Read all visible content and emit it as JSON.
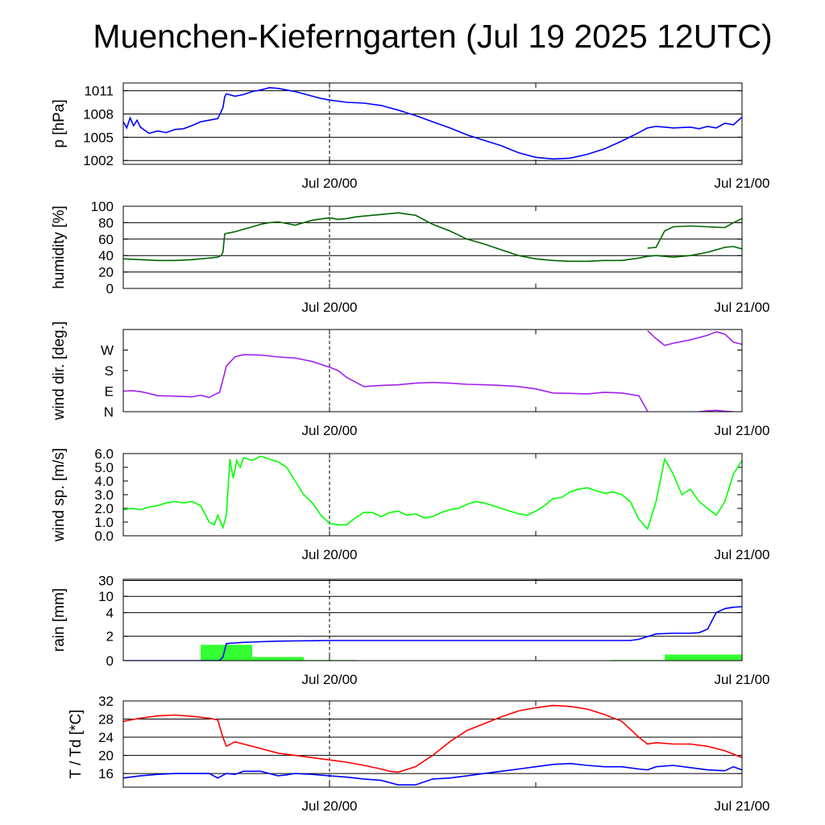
{
  "title": "Muenchen-Kieferngarten (Jul 19 2025 12UTC)",
  "chart_data": [
    {
      "type": "line",
      "ylabel": "p [hPa]",
      "ylim": [
        1001.5,
        1012
      ],
      "yticks": [
        1002,
        1005,
        1008,
        1011
      ],
      "yticklabels": [
        "1002",
        "1005",
        "1008",
        "1011"
      ],
      "xticklabels": [
        "Jul 20/00",
        "Jul 21/00"
      ],
      "xlim": [
        0,
        36
      ],
      "grid": true,
      "series": [
        {
          "color": "#0000ff",
          "x": [
            0,
            0.2,
            0.4,
            0.6,
            0.8,
            1,
            1.5,
            2,
            2.5,
            3,
            3.5,
            4,
            4.5,
            5,
            5.5,
            5.8,
            5.9,
            6,
            6.5,
            7,
            7.5,
            8,
            8.5,
            9,
            9.5,
            10,
            10.5,
            11,
            11.5,
            12,
            13,
            14,
            15,
            16,
            17,
            18,
            19,
            20,
            21,
            22,
            23,
            24,
            25,
            26,
            27,
            28,
            29,
            30,
            30.5,
            31,
            31.5,
            32,
            33,
            33.5,
            34,
            34.5,
            35,
            35.5,
            36
          ],
          "y": [
            1007,
            1006.2,
            1007.5,
            1006.5,
            1007.2,
            1006.3,
            1005.5,
            1005.8,
            1005.6,
            1006,
            1006.1,
            1006.5,
            1007,
            1007.2,
            1007.4,
            1008.8,
            1010.2,
            1010.6,
            1010.3,
            1010.5,
            1010.9,
            1011.1,
            1011.4,
            1011.3,
            1011.1,
            1010.9,
            1010.6,
            1010.3,
            1010.0,
            1009.8,
            1009.5,
            1009.4,
            1009.1,
            1008.5,
            1007.8,
            1007.0,
            1006.2,
            1005.3,
            1004.6,
            1003.9,
            1003.0,
            1002.4,
            1002.2,
            1002.3,
            1002.8,
            1003.5,
            1004.5,
            1005.6,
            1006.2,
            1006.4,
            1006.3,
            1006.2,
            1006.3,
            1006.1,
            1006.4,
            1006.2,
            1006.8,
            1006.6,
            1007.6
          ]
        }
      ]
    },
    {
      "type": "line",
      "ylabel": "humidity [%]",
      "ylim": [
        0,
        100
      ],
      "yticks": [
        0,
        20,
        40,
        60,
        80,
        100
      ],
      "yticklabels": [
        "0",
        "20",
        "40",
        "60",
        "80",
        "100"
      ],
      "xticklabels": [
        "Jul 20/00",
        "Jul 21/00"
      ],
      "xlim": [
        0,
        36
      ],
      "grid": true,
      "series": [
        {
          "color": "#006400",
          "x": [
            0,
            1,
            2,
            3,
            4,
            5,
            5.5,
            5.7,
            5.8,
            5.9,
            6,
            6.5,
            7,
            7.5,
            8,
            8.5,
            9,
            9.5,
            10,
            10.5,
            11,
            12,
            12.5,
            13,
            13.5,
            14,
            15,
            16,
            17,
            18,
            19,
            20,
            21,
            22,
            23,
            24,
            25,
            26,
            27,
            28,
            29,
            30,
            30.5,
            31,
            32,
            33,
            34,
            35,
            35.5,
            36
          ],
          "y": [
            36,
            35,
            34,
            34,
            35,
            37,
            38,
            40,
            44,
            66,
            67,
            69,
            72,
            75,
            78,
            80,
            81,
            79,
            77,
            80,
            83,
            86,
            84,
            85,
            87,
            88,
            90,
            92,
            89,
            78,
            70,
            60,
            54,
            47,
            40,
            36,
            34,
            33,
            33,
            34,
            34,
            37,
            39,
            40,
            38,
            40,
            44,
            50,
            51,
            48
          ]
        },
        {
          "color": "#006400",
          "x": [
            30.5,
            31,
            31.5,
            32,
            33,
            34,
            35,
            35.5,
            36
          ],
          "y": [
            49,
            50,
            70,
            75,
            76,
            75,
            74,
            80,
            85
          ]
        }
      ]
    },
    {
      "type": "line",
      "ylabel": "wind dir. [deg.]",
      "ylim": [
        0,
        360
      ],
      "yticks": [
        0,
        90,
        180,
        270
      ],
      "yticklabels": [
        "N",
        "E",
        "S",
        "W"
      ],
      "xticklabels": [
        "Jul 20/00",
        "Jul 21/00"
      ],
      "xlim": [
        0,
        36
      ],
      "grid": false,
      "series": [
        {
          "color": "#a020f0",
          "x": [
            0,
            0.5,
            1,
            1.5,
            2,
            3,
            4,
            4.5,
            5,
            5.3,
            5.6,
            5.8,
            6,
            6.5,
            7,
            8,
            9,
            10,
            11,
            12,
            12.5,
            13,
            14,
            15,
            16,
            17,
            18,
            19,
            20,
            21,
            22,
            23,
            24,
            25,
            26,
            27,
            28,
            29,
            30,
            30.5
          ],
          "y": [
            90,
            92,
            88,
            80,
            70,
            68,
            65,
            72,
            62,
            75,
            85,
            140,
            200,
            240,
            250,
            248,
            240,
            235,
            220,
            195,
            180,
            150,
            110,
            115,
            118,
            125,
            128,
            125,
            120,
            118,
            115,
            110,
            100,
            82,
            80,
            78,
            85,
            82,
            70,
            2
          ]
        },
        {
          "color": "#a020f0",
          "x": [
            30.5,
            31,
            31.5,
            32,
            33,
            34,
            34.5,
            35,
            35.5,
            36
          ],
          "y": [
            355,
            320,
            290,
            300,
            315,
            335,
            350,
            340,
            305,
            295
          ]
        },
        {
          "color": "#a020f0",
          "x": [
            33.5,
            34,
            34.5,
            35,
            35.5
          ],
          "y": [
            0,
            4,
            6,
            2,
            0
          ]
        }
      ]
    },
    {
      "type": "line",
      "ylabel": "wind sp. [m/s]",
      "ylim": [
        0,
        6.0
      ],
      "yticks": [
        0,
        1,
        2,
        3,
        4,
        5,
        6
      ],
      "yticklabels": [
        "0.0",
        "1.0",
        "2.0",
        "3.0",
        "4.0",
        "5.0",
        "6.0"
      ],
      "xticklabels": [
        "Jul 20/00",
        "Jul 21/00"
      ],
      "xlim": [
        0,
        36
      ],
      "grid": false,
      "series": [
        {
          "color": "#00ff00",
          "x": [
            0,
            0.5,
            1,
            1.5,
            2,
            2.5,
            3,
            3.5,
            4,
            4.5,
            5,
            5.3,
            5.5,
            5.8,
            6,
            6.2,
            6.4,
            6.6,
            6.8,
            7,
            7.5,
            8,
            8.5,
            9,
            9.5,
            10,
            10.5,
            11,
            11.5,
            12,
            12.5,
            13,
            13.5,
            14,
            14.5,
            15,
            15.5,
            16,
            16.5,
            17,
            17.5,
            18,
            18.5,
            19,
            19.5,
            20,
            20.5,
            21,
            21.5,
            22,
            22.5,
            23,
            23.5,
            24,
            24.5,
            25,
            25.5,
            26,
            26.5,
            27,
            27.5,
            28,
            28.5,
            29,
            29.5,
            30,
            30.5,
            31,
            31.5,
            32,
            32.5,
            33,
            33.5,
            34,
            34.5,
            35,
            35.5,
            36
          ],
          "y": [
            1.9,
            2.0,
            1.9,
            2.1,
            2.2,
            2.4,
            2.5,
            2.4,
            2.5,
            2.2,
            1.0,
            0.8,
            1.5,
            0.6,
            1.5,
            5.6,
            4.2,
            5.5,
            5.0,
            5.7,
            5.5,
            5.8,
            5.6,
            5.4,
            5.0,
            4.0,
            3.0,
            2.4,
            1.5,
            0.9,
            0.8,
            0.8,
            1.3,
            1.7,
            1.7,
            1.4,
            1.7,
            1.8,
            1.5,
            1.6,
            1.3,
            1.4,
            1.7,
            1.9,
            2.0,
            2.3,
            2.5,
            2.4,
            2.2,
            2.0,
            1.8,
            1.6,
            1.5,
            1.8,
            2.2,
            2.7,
            2.8,
            3.2,
            3.4,
            3.5,
            3.3,
            3.1,
            3.2,
            3.0,
            2.5,
            1.2,
            0.5,
            2.5,
            5.6,
            4.5,
            3.0,
            3.4,
            2.5,
            2.0,
            1.5,
            2.5,
            4.5,
            5.5
          ]
        }
      ]
    },
    {
      "type": "bar",
      "ylabel": "rain [mm]",
      "ylim": [
        0,
        30
      ],
      "yticks": [
        0,
        2,
        4,
        10,
        30
      ],
      "yticklabels": [
        "0",
        "2",
        "4",
        "10",
        "30"
      ],
      "xticklabels": [
        "Jul 20/00",
        "Jul 21/00"
      ],
      "xlim": [
        0,
        36
      ],
      "grid": true,
      "bars": {
        "color": "#33ff33",
        "x0": [
          0,
          3,
          4.5,
          7.5,
          10.5,
          13.5,
          16.5,
          19.5,
          22.5,
          25.5,
          28.5,
          31.5
        ],
        "x1": [
          3,
          4.5,
          7.5,
          10.5,
          13.5,
          16.5,
          19.5,
          22.5,
          25.5,
          28.5,
          31.5,
          36
        ],
        "values": [
          0,
          0,
          1.3,
          0.3,
          0.05,
          0,
          0,
          0,
          0,
          0,
          0.05,
          0.5
        ]
      },
      "series": [
        {
          "color": "#0000ff",
          "x": [
            0,
            5.6,
            5.8,
            6,
            6.5,
            7,
            7.5,
            8,
            9,
            10,
            11,
            12,
            14,
            16,
            18,
            20,
            22,
            24,
            26,
            28,
            29.5,
            30,
            31,
            32,
            33,
            33.5,
            34,
            34.5,
            35,
            35.5,
            36
          ],
          "y": [
            0,
            0,
            0.3,
            1.4,
            1.45,
            1.5,
            1.52,
            1.55,
            1.6,
            1.62,
            1.63,
            1.65,
            1.65,
            1.65,
            1.65,
            1.65,
            1.65,
            1.65,
            1.65,
            1.65,
            1.65,
            1.75,
            2.2,
            2.25,
            2.25,
            2.3,
            2.6,
            4.0,
            5.5,
            6.0,
            6.2
          ]
        }
      ]
    },
    {
      "type": "line",
      "ylabel": "T / Td [*C]",
      "ylim": [
        13,
        32
      ],
      "yticks": [
        16,
        20,
        24,
        28,
        32
      ],
      "yticklabels": [
        "16",
        "20",
        "24",
        "28",
        "32"
      ],
      "xticklabels": [
        "Jul 20/00",
        "Jul 21/00"
      ],
      "xlim": [
        0,
        36
      ],
      "grid": true,
      "series": [
        {
          "color": "#ff0000",
          "x": [
            0,
            1,
            2,
            3,
            4,
            5,
            5.5,
            5.8,
            6,
            6.5,
            7,
            8,
            9,
            10,
            11,
            12,
            13,
            14,
            15,
            15.5,
            16,
            17,
            18,
            19,
            20,
            21,
            22,
            23,
            24,
            25,
            26,
            27,
            28,
            29,
            30,
            30.5,
            31,
            32,
            33,
            34,
            35,
            36
          ],
          "y": [
            27.5,
            28.2,
            28.7,
            28.9,
            28.6,
            28.2,
            27.8,
            24,
            22,
            23,
            22.5,
            21.5,
            20.5,
            20,
            19.5,
            19,
            18.5,
            17.8,
            17,
            16.5,
            16.3,
            17.5,
            20,
            23,
            25.5,
            27,
            28.5,
            29.8,
            30.5,
            31,
            30.8,
            30.2,
            29,
            27.5,
            24,
            22.5,
            22.8,
            22.5,
            22.5,
            22,
            21,
            19.5
          ]
        },
        {
          "color": "#0000ff",
          "x": [
            0,
            1,
            2,
            3,
            4,
            5,
            5.5,
            6,
            6.5,
            7,
            8,
            8.5,
            9,
            9.5,
            10,
            11,
            12,
            13,
            14,
            15,
            16,
            17,
            18,
            19,
            20,
            21,
            22,
            23,
            24,
            25,
            26,
            27,
            28,
            29,
            30,
            30.5,
            31,
            32,
            33,
            34,
            35,
            35.5,
            36
          ],
          "y": [
            15,
            15.5,
            15.8,
            16,
            16,
            16,
            15,
            16,
            15.8,
            16.5,
            16.5,
            16,
            15.5,
            15.7,
            16,
            15.8,
            15.5,
            15.2,
            14.8,
            14.5,
            13.5,
            13.5,
            14.8,
            15,
            15.5,
            16,
            16.5,
            17,
            17.5,
            18,
            18.2,
            17.8,
            17.5,
            17.5,
            17,
            16.8,
            17.5,
            17.8,
            17.3,
            16.8,
            16.6,
            17.5,
            16.8
          ]
        }
      ]
    }
  ]
}
